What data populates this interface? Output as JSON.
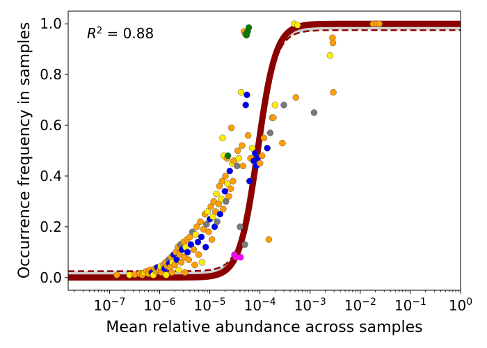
{
  "chart_data": {
    "type": "scatter",
    "xscale": "log",
    "xlim": [
      1.5e-08,
      1
    ],
    "ylim": [
      -0.05,
      1.05
    ],
    "xlabel": "Mean relative abundance across samples",
    "ylabel": "Occurrence frequency in samples",
    "annotation": {
      "prefix": "R",
      "sup": "2",
      "rest": " = 0.88"
    },
    "grid": false,
    "x_ticks": [
      {
        "value": 1e-07,
        "base": "10",
        "exp": "−7"
      },
      {
        "value": 1e-06,
        "base": "10",
        "exp": "−6"
      },
      {
        "value": 1e-05,
        "base": "10",
        "exp": "−5"
      },
      {
        "value": 0.0001,
        "base": "10",
        "exp": "−4"
      },
      {
        "value": 0.001,
        "base": "10",
        "exp": "−3"
      },
      {
        "value": 0.01,
        "base": "10",
        "exp": "−2"
      },
      {
        "value": 0.1,
        "base": "10",
        "exp": "−1"
      },
      {
        "value": 1,
        "base": "10",
        "exp": "0"
      }
    ],
    "y_ticks": [
      {
        "value": 0.0,
        "label": "0.0"
      },
      {
        "value": 0.2,
        "label": "0.2"
      },
      {
        "value": 0.4,
        "label": "0.4"
      },
      {
        "value": 0.6,
        "label": "0.6"
      },
      {
        "value": 0.8,
        "label": "0.8"
      },
      {
        "value": 1.0,
        "label": "1.0"
      }
    ],
    "fit": {
      "model": "logistic-in-log10",
      "midpoint": 9e-05,
      "slope": 2.4,
      "color": "#8b0000",
      "band_color": "#d0d0d0",
      "ci_lower": [
        0.0,
        0.975
      ],
      "ci_upper": [
        0.025,
        1.0
      ]
    },
    "colors": {
      "orange": "#ff9f00",
      "yellow": "#ffee00",
      "blue": "#0000ee",
      "gray": "#7a7a7a",
      "green": "#007a00",
      "magenta": "#ff00ff"
    },
    "points": [
      {
        "x": 1.4e-07,
        "y": 0.01,
        "c": "orange"
      },
      {
        "x": 2.5e-07,
        "y": 0.01,
        "c": "yellow"
      },
      {
        "x": 3.2e-07,
        "y": 0.012,
        "c": "orange"
      },
      {
        "x": 4e-07,
        "y": 0.015,
        "c": "orange"
      },
      {
        "x": 4.5e-07,
        "y": 0.01,
        "c": "orange"
      },
      {
        "x": 5e-07,
        "y": 0.02,
        "c": "yellow"
      },
      {
        "x": 5.5e-07,
        "y": 0.025,
        "c": "orange"
      },
      {
        "x": 6e-07,
        "y": 0.015,
        "c": "orange"
      },
      {
        "x": 6.5e-07,
        "y": 0.03,
        "c": "orange"
      },
      {
        "x": 7e-07,
        "y": 0.02,
        "c": "blue"
      },
      {
        "x": 7.5e-07,
        "y": 0.01,
        "c": "yellow"
      },
      {
        "x": 8e-07,
        "y": 0.035,
        "c": "orange"
      },
      {
        "x": 8.5e-07,
        "y": 0.025,
        "c": "orange"
      },
      {
        "x": 9e-07,
        "y": 0.04,
        "c": "blue"
      },
      {
        "x": 1e-06,
        "y": 0.03,
        "c": "orange"
      },
      {
        "x": 1.05e-06,
        "y": 0.045,
        "c": "yellow"
      },
      {
        "x": 1.1e-06,
        "y": 0.02,
        "c": "orange"
      },
      {
        "x": 1.2e-06,
        "y": 0.05,
        "c": "orange"
      },
      {
        "x": 1.25e-06,
        "y": 0.035,
        "c": "blue"
      },
      {
        "x": 1.3e-06,
        "y": 0.06,
        "c": "orange"
      },
      {
        "x": 1.35e-06,
        "y": 0.01,
        "c": "yellow"
      },
      {
        "x": 1.4e-06,
        "y": 0.045,
        "c": "orange"
      },
      {
        "x": 1.5e-06,
        "y": 0.07,
        "c": "gray"
      },
      {
        "x": 1.55e-06,
        "y": 0.055,
        "c": "blue"
      },
      {
        "x": 1.6e-06,
        "y": 0.04,
        "c": "orange"
      },
      {
        "x": 1.7e-06,
        "y": 0.08,
        "c": "orange"
      },
      {
        "x": 1.75e-06,
        "y": 0.02,
        "c": "orange"
      },
      {
        "x": 1.8e-06,
        "y": 0.06,
        "c": "yellow"
      },
      {
        "x": 1.9e-06,
        "y": 0.09,
        "c": "blue"
      },
      {
        "x": 2e-06,
        "y": 0.05,
        "c": "orange"
      },
      {
        "x": 2.1e-06,
        "y": 0.1,
        "c": "orange"
      },
      {
        "x": 2.2e-06,
        "y": 0.07,
        "c": "blue"
      },
      {
        "x": 2.3e-06,
        "y": 0.12,
        "c": "orange"
      },
      {
        "x": 2.4e-06,
        "y": 0.03,
        "c": "yellow"
      },
      {
        "x": 2.5e-06,
        "y": 0.09,
        "c": "orange"
      },
      {
        "x": 2.6e-06,
        "y": 0.13,
        "c": "gray"
      },
      {
        "x": 2.7e-06,
        "y": 0.06,
        "c": "orange"
      },
      {
        "x": 2.8e-06,
        "y": 0.11,
        "c": "blue"
      },
      {
        "x": 3e-06,
        "y": 0.14,
        "c": "orange"
      },
      {
        "x": 3.1e-06,
        "y": 0.08,
        "c": "orange"
      },
      {
        "x": 3.2e-06,
        "y": 0.02,
        "c": "orange"
      },
      {
        "x": 3.3e-06,
        "y": 0.12,
        "c": "yellow"
      },
      {
        "x": 3.5e-06,
        "y": 0.15,
        "c": "orange"
      },
      {
        "x": 3.6e-06,
        "y": 0.1,
        "c": "blue"
      },
      {
        "x": 3.8e-06,
        "y": 0.07,
        "c": "orange"
      },
      {
        "x": 4e-06,
        "y": 0.16,
        "c": "orange"
      },
      {
        "x": 4.2e-06,
        "y": 0.13,
        "c": "blue"
      },
      {
        "x": 4.5e-06,
        "y": 0.18,
        "c": "gray"
      },
      {
        "x": 4.8e-06,
        "y": 0.11,
        "c": "orange"
      },
      {
        "x": 5e-06,
        "y": 0.05,
        "c": "orange"
      },
      {
        "x": 5.2e-06,
        "y": 0.17,
        "c": "yellow"
      },
      {
        "x": 5.5e-06,
        "y": 0.2,
        "c": "orange"
      },
      {
        "x": 5.8e-06,
        "y": 0.14,
        "c": "blue"
      },
      {
        "x": 6e-06,
        "y": 0.09,
        "c": "orange"
      },
      {
        "x": 6.5e-06,
        "y": 0.22,
        "c": "orange"
      },
      {
        "x": 6.8e-06,
        "y": 0.16,
        "c": "blue"
      },
      {
        "x": 7e-06,
        "y": 0.06,
        "c": "yellow"
      },
      {
        "x": 7.5e-06,
        "y": 0.19,
        "c": "orange"
      },
      {
        "x": 8e-06,
        "y": 0.25,
        "c": "orange"
      },
      {
        "x": 8.3e-06,
        "y": 0.12,
        "c": "blue"
      },
      {
        "x": 8.6e-06,
        "y": 0.21,
        "c": "gray"
      },
      {
        "x": 9e-06,
        "y": 0.26,
        "c": "yellow"
      },
      {
        "x": 9.5e-06,
        "y": 0.18,
        "c": "orange"
      },
      {
        "x": 1e-05,
        "y": 0.23,
        "c": "blue"
      },
      {
        "x": 1.05e-05,
        "y": 0.28,
        "c": "orange"
      },
      {
        "x": 1.1e-05,
        "y": 0.15,
        "c": "orange"
      },
      {
        "x": 1.15e-05,
        "y": 0.24,
        "c": "yellow"
      },
      {
        "x": 1.2e-05,
        "y": 0.3,
        "c": "orange"
      },
      {
        "x": 1.25e-05,
        "y": 0.2,
        "c": "blue"
      },
      {
        "x": 1.3e-05,
        "y": 0.26,
        "c": "orange"
      },
      {
        "x": 1.35e-05,
        "y": 0.33,
        "c": "yellow"
      },
      {
        "x": 1.4e-05,
        "y": 0.22,
        "c": "gray"
      },
      {
        "x": 1.5e-05,
        "y": 0.29,
        "c": "orange"
      },
      {
        "x": 1.55e-05,
        "y": 0.36,
        "c": "orange"
      },
      {
        "x": 1.6e-05,
        "y": 0.25,
        "c": "blue"
      },
      {
        "x": 1.7e-05,
        "y": 0.31,
        "c": "yellow"
      },
      {
        "x": 1.75e-05,
        "y": 0.38,
        "c": "orange"
      },
      {
        "x": 1.8e-05,
        "y": 0.55,
        "c": "yellow"
      },
      {
        "x": 1.85e-05,
        "y": 0.27,
        "c": "orange"
      },
      {
        "x": 1.9e-05,
        "y": 0.48,
        "c": "yellow"
      },
      {
        "x": 2e-05,
        "y": 0.34,
        "c": "blue"
      },
      {
        "x": 2.05e-05,
        "y": 0.4,
        "c": "orange"
      },
      {
        "x": 2.1e-05,
        "y": 0.3,
        "c": "gray"
      },
      {
        "x": 2.2e-05,
        "y": 0.47,
        "c": "orange"
      },
      {
        "x": 2.25e-05,
        "y": 0.37,
        "c": "yellow"
      },
      {
        "x": 2.3e-05,
        "y": 0.48,
        "c": "green"
      },
      {
        "x": 2.4e-05,
        "y": 0.32,
        "c": "orange"
      },
      {
        "x": 2.5e-05,
        "y": 0.42,
        "c": "blue"
      },
      {
        "x": 2.6e-05,
        "y": 0.35,
        "c": "orange"
      },
      {
        "x": 2.7e-05,
        "y": 0.59,
        "c": "orange"
      },
      {
        "x": 2.8e-05,
        "y": 0.45,
        "c": "yellow"
      },
      {
        "x": 2.9e-05,
        "y": 0.38,
        "c": "orange"
      },
      {
        "x": 3e-05,
        "y": 0.46,
        "c": "orange"
      },
      {
        "x": 3.1e-05,
        "y": 0.09,
        "c": "magenta"
      },
      {
        "x": 3.3e-05,
        "y": 0.08,
        "c": "magenta"
      },
      {
        "x": 3.5e-05,
        "y": 0.44,
        "c": "gray"
      },
      {
        "x": 3.6e-05,
        "y": 0.5,
        "c": "orange"
      },
      {
        "x": 3.8e-05,
        "y": 0.47,
        "c": "yellow"
      },
      {
        "x": 4e-05,
        "y": 0.2,
        "c": "gray"
      },
      {
        "x": 4.1e-05,
        "y": 0.08,
        "c": "magenta"
      },
      {
        "x": 4.2e-05,
        "y": 0.73,
        "c": "yellow"
      },
      {
        "x": 4.4e-05,
        "y": 0.52,
        "c": "orange"
      },
      {
        "x": 4.6e-05,
        "y": 0.44,
        "c": "orange"
      },
      {
        "x": 4.8e-05,
        "y": 0.97,
        "c": "orange"
      },
      {
        "x": 5e-05,
        "y": 0.13,
        "c": "gray"
      },
      {
        "x": 5.1e-05,
        "y": 0.96,
        "c": "orange"
      },
      {
        "x": 5.2e-05,
        "y": 0.68,
        "c": "blue"
      },
      {
        "x": 5.3e-05,
        "y": 0.96,
        "c": "green"
      },
      {
        "x": 5.4e-05,
        "y": 0.955,
        "c": "green"
      },
      {
        "x": 5.5e-05,
        "y": 0.72,
        "c": "blue"
      },
      {
        "x": 5.7e-05,
        "y": 0.97,
        "c": "green"
      },
      {
        "x": 5.8e-05,
        "y": 0.56,
        "c": "orange"
      },
      {
        "x": 6e-05,
        "y": 0.985,
        "c": "green"
      },
      {
        "x": 6.2e-05,
        "y": 0.38,
        "c": "blue"
      },
      {
        "x": 6.5e-05,
        "y": 0.47,
        "c": "orange"
      },
      {
        "x": 7e-05,
        "y": 0.51,
        "c": "yellow"
      },
      {
        "x": 7.5e-05,
        "y": 0.46,
        "c": "blue"
      },
      {
        "x": 8e-05,
        "y": 0.49,
        "c": "blue"
      },
      {
        "x": 8.5e-05,
        "y": 0.44,
        "c": "blue"
      },
      {
        "x": 9e-05,
        "y": 0.47,
        "c": "blue"
      },
      {
        "x": 0.0001,
        "y": 0.45,
        "c": "orange"
      },
      {
        "x": 0.00011,
        "y": 0.48,
        "c": "orange"
      },
      {
        "x": 0.00012,
        "y": 0.55,
        "c": "orange"
      },
      {
        "x": 0.00014,
        "y": 0.51,
        "c": "blue"
      },
      {
        "x": 0.00015,
        "y": 0.15,
        "c": "orange"
      },
      {
        "x": 0.00016,
        "y": 0.57,
        "c": "gray"
      },
      {
        "x": 0.000175,
        "y": 0.63,
        "c": "orange"
      },
      {
        "x": 0.000185,
        "y": 0.63,
        "c": "orange"
      },
      {
        "x": 0.0002,
        "y": 0.68,
        "c": "yellow"
      },
      {
        "x": 0.00028,
        "y": 0.53,
        "c": "orange"
      },
      {
        "x": 0.0003,
        "y": 0.68,
        "c": "gray"
      },
      {
        "x": 0.00048,
        "y": 1.0,
        "c": "yellow"
      },
      {
        "x": 0.00052,
        "y": 0.71,
        "c": "orange"
      },
      {
        "x": 0.00056,
        "y": 0.995,
        "c": "yellow"
      },
      {
        "x": 0.0012,
        "y": 0.65,
        "c": "gray"
      },
      {
        "x": 0.0025,
        "y": 0.875,
        "c": "yellow"
      },
      {
        "x": 0.0028,
        "y": 0.945,
        "c": "orange"
      },
      {
        "x": 0.00285,
        "y": 0.925,
        "c": "orange"
      },
      {
        "x": 0.0029,
        "y": 0.73,
        "c": "orange"
      },
      {
        "x": 0.018,
        "y": 1.0,
        "c": "orange"
      },
      {
        "x": 0.021,
        "y": 1.0,
        "c": "orange"
      },
      {
        "x": 0.024,
        "y": 1.0,
        "c": "orange"
      }
    ]
  }
}
